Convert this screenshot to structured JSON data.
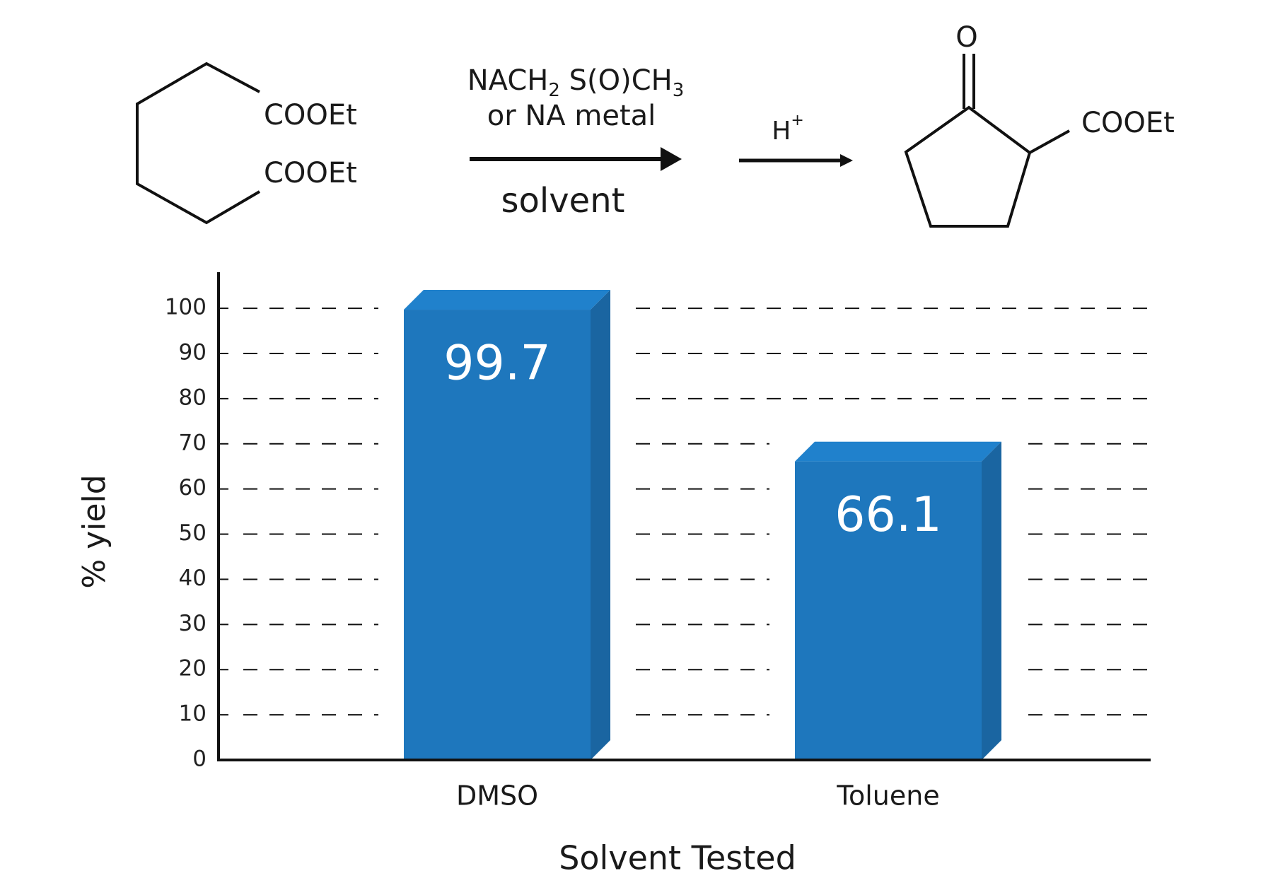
{
  "scheme": {
    "reactant_groups": [
      "COOEt",
      "COOEt"
    ],
    "reagent": [
      "NACH",
      "2",
      " S(O)CH",
      "3"
    ],
    "reagent_alt": "or NA metal",
    "solvent": "solvent",
    "acid": "H",
    "acid_charge": "+",
    "product_oxygen": "O",
    "product_group": "COOEt"
  },
  "chart_data": {
    "type": "bar",
    "y_label": "% yield",
    "x_label": "Solvent Tested",
    "categories": [
      "DMSO",
      "Toluene"
    ],
    "values": [
      99.7,
      66.1
    ],
    "color": "#1e77bd",
    "ylim": [
      0,
      108
    ],
    "yticks": [
      0,
      10,
      20,
      30,
      40,
      50,
      60,
      70,
      80,
      90,
      100
    ],
    "grid": true
  }
}
